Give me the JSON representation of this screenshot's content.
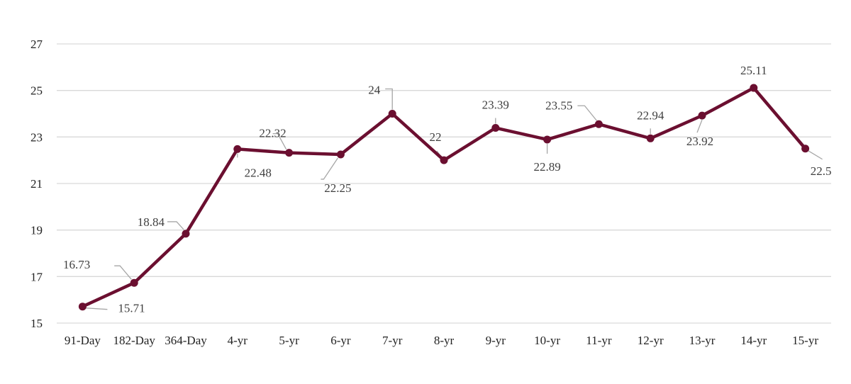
{
  "chart_data": {
    "type": "line",
    "categories": [
      "91-Day",
      "182-Day",
      "364-Day",
      "4-yr",
      "5-yr",
      "6-yr",
      "7-yr",
      "8-yr",
      "9-yr",
      "10-yr",
      "11-yr",
      "12-yr",
      "13-yr",
      "14-yr",
      "15-yr"
    ],
    "series": [
      {
        "values": [
          15.71,
          16.73,
          18.84,
          22.48,
          22.32,
          22.25,
          24,
          22,
          23.39,
          22.89,
          23.55,
          22.94,
          23.92,
          25.11,
          22.5
        ],
        "color": "#6b0f30"
      }
    ],
    "data_labels": [
      "15.71",
      "16.73",
      "18.84",
      "22.48",
      "22.32",
      "22.25",
      "24",
      "22",
      "23.39",
      "22.89",
      "23.55",
      "22.94",
      "23.92",
      "25.11",
      "22.5"
    ],
    "ylim": [
      15,
      27
    ],
    "yticks": [
      "15",
      "17",
      "19",
      "21",
      "23",
      "25",
      "27"
    ],
    "grid": true,
    "legend": "none",
    "colors": {
      "line": "#6b0f30",
      "grid": "#d9d9d9",
      "leader": "#a6a6a6",
      "label": "#404040"
    }
  }
}
